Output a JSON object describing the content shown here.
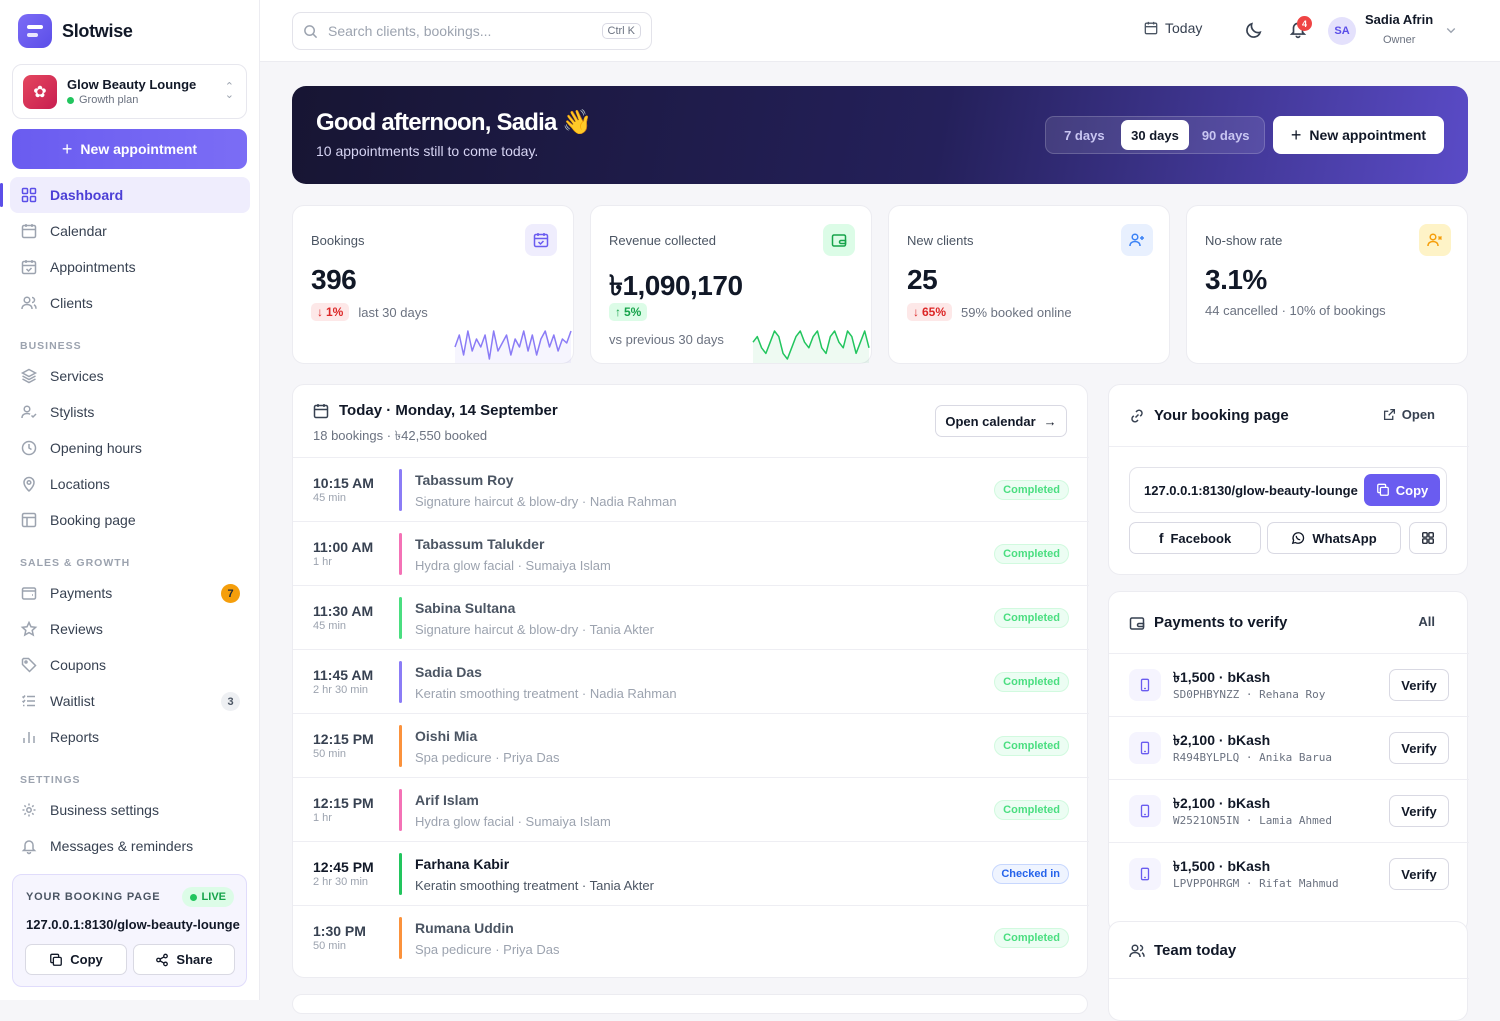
{
  "brand": {
    "name": "Slotwise"
  },
  "business": {
    "name": "Glow Beauty Lounge",
    "plan": "Growth plan"
  },
  "sidebar": {
    "new_appointment": "New appointment",
    "items_main": [
      {
        "label": "Dashboard",
        "icon": "grid-icon"
      },
      {
        "label": "Calendar",
        "icon": "calendar-icon"
      },
      {
        "label": "Appointments",
        "icon": "calendar-check-icon"
      },
      {
        "label": "Clients",
        "icon": "users-icon"
      }
    ],
    "section_business": "BUSINESS",
    "items_business": [
      {
        "label": "Services",
        "icon": "layers-icon"
      },
      {
        "label": "Stylists",
        "icon": "user-check-icon"
      },
      {
        "label": "Opening hours",
        "icon": "clock-icon"
      },
      {
        "label": "Locations",
        "icon": "map-pin-icon"
      },
      {
        "label": "Booking page",
        "icon": "layout-icon"
      }
    ],
    "section_sales": "SALES & GROWTH",
    "items_sales": [
      {
        "label": "Payments",
        "icon": "wallet-icon",
        "badge": "7"
      },
      {
        "label": "Reviews",
        "icon": "star-icon"
      },
      {
        "label": "Coupons",
        "icon": "tag-icon"
      },
      {
        "label": "Waitlist",
        "icon": "list-icon",
        "badge": "3"
      },
      {
        "label": "Reports",
        "icon": "bar-chart-icon"
      }
    ],
    "section_settings": "SETTINGS",
    "items_settings": [
      {
        "label": "Business settings",
        "icon": "gear-icon"
      },
      {
        "label": "Messages & reminders",
        "icon": "bell-icon"
      }
    ],
    "footer": {
      "label": "YOUR BOOKING PAGE",
      "live": "LIVE",
      "url": "127.0.0.1:8130/glow-beauty-lounge",
      "copy": "Copy",
      "share": "Share"
    }
  },
  "topbar": {
    "search_placeholder": "Search clients, bookings...",
    "search_shortcut": "Ctrl K",
    "today": "Today",
    "notifications": "4",
    "user_initials": "SA",
    "user_name": "Sadia Afrin",
    "user_role": "Owner"
  },
  "hero": {
    "title": "Good afternoon, Sadia 👋",
    "subtitle": "10 appointments still to come today.",
    "ranges": [
      "7 days",
      "30 days",
      "90 days"
    ],
    "selected_range": "30 days",
    "new_appointment": "New appointment"
  },
  "stats": [
    {
      "label": "Bookings",
      "value": "396",
      "change": "1%",
      "direction": "down",
      "note": "last 30 days",
      "icon": "calendar-check-icon",
      "accent": "#6a5cf0",
      "spark": [
        3,
        6,
        1,
        7,
        2,
        5,
        3,
        6,
        0,
        7,
        2,
        4,
        6,
        1,
        5,
        3,
        7,
        2,
        6,
        1,
        5,
        7,
        3,
        6,
        2,
        5,
        4,
        7
      ]
    },
    {
      "label": "Revenue collected",
      "value": "৳1,090,170",
      "change": "5%",
      "direction": "up",
      "note": "vs previous 30 days",
      "icon": "wallet-icon",
      "accent": "#16a34a",
      "spark": [
        4,
        5,
        3,
        2,
        4,
        6,
        5,
        2,
        1,
        3,
        5,
        6,
        4,
        3,
        5,
        6,
        3,
        2,
        5,
        6,
        4,
        3,
        6,
        5,
        2,
        4,
        6,
        3
      ]
    },
    {
      "label": "New clients",
      "value": "25",
      "change": "65%",
      "direction": "down",
      "note": "59% booked online",
      "icon": "user-plus-icon",
      "accent": "#3b82f6"
    },
    {
      "label": "No-show rate",
      "value": "3.1%",
      "note": "44 cancelled · 10% of bookings",
      "icon": "user-x-icon",
      "accent": "#f59e0b"
    }
  ],
  "schedule": {
    "title": "Today · Monday, 14 September",
    "subtitle": "18 bookings · ৳42,550 booked",
    "open_calendar": "Open calendar",
    "rows": [
      {
        "time": "10:15 AM",
        "duration": "45 min",
        "client": "Tabassum Roy",
        "service": "Signature haircut & blow-dry · Nadia Rahman",
        "status": "Completed",
        "color": "#8b7cf6"
      },
      {
        "time": "11:00 AM",
        "duration": "1 hr",
        "client": "Tabassum Talukder",
        "service": "Hydra glow facial · Sumaiya Islam",
        "status": "Completed",
        "color": "#f472b6"
      },
      {
        "time": "11:30 AM",
        "duration": "45 min",
        "client": "Sabina Sultana",
        "service": "Signature haircut & blow-dry · Tania Akter",
        "status": "Completed",
        "color": "#4ade80"
      },
      {
        "time": "11:45 AM",
        "duration": "2 hr 30 min",
        "client": "Sadia Das",
        "service": "Keratin smoothing treatment · Nadia Rahman",
        "status": "Completed",
        "color": "#8b7cf6"
      },
      {
        "time": "12:15 PM",
        "duration": "50 min",
        "client": "Oishi Mia",
        "service": "Spa pedicure · Priya Das",
        "status": "Completed",
        "color": "#fb923c"
      },
      {
        "time": "12:15 PM",
        "duration": "1 hr",
        "client": "Arif Islam",
        "service": "Hydra glow facial · Sumaiya Islam",
        "status": "Completed",
        "color": "#f472b6"
      },
      {
        "time": "12:45 PM",
        "duration": "2 hr 30 min",
        "client": "Farhana Kabir",
        "service": "Keratin smoothing treatment · Tania Akter",
        "status": "Checked in",
        "color": "#22c55e"
      },
      {
        "time": "1:30 PM",
        "duration": "50 min",
        "client": "Rumana Uddin",
        "service": "Spa pedicure · Priya Das",
        "status": "Completed",
        "color": "#fb923c"
      }
    ]
  },
  "booking_page": {
    "title": "Your booking page",
    "open": "Open",
    "url": "127.0.0.1:8130/glow-beauty-lounge",
    "copy": "Copy",
    "facebook": "Facebook",
    "whatsapp": "WhatsApp"
  },
  "payments": {
    "title": "Payments to verify",
    "all": "All",
    "verify": "Verify",
    "items": [
      {
        "amount": "৳1,500 · bKash",
        "txn": "SD0PHBYNZZ",
        "name": "Rehana Roy"
      },
      {
        "amount": "৳2,100 · bKash",
        "txn": "R494BYLPLQ",
        "name": "Anika Barua"
      },
      {
        "amount": "৳2,100 · bKash",
        "txn": "W2521ON5IN",
        "name": "Lamia Ahmed"
      },
      {
        "amount": "৳1,500 · bKash",
        "txn": "LPVPPOHRGM",
        "name": "Rifat Mahmud"
      }
    ]
  },
  "team": {
    "title": "Team today"
  }
}
